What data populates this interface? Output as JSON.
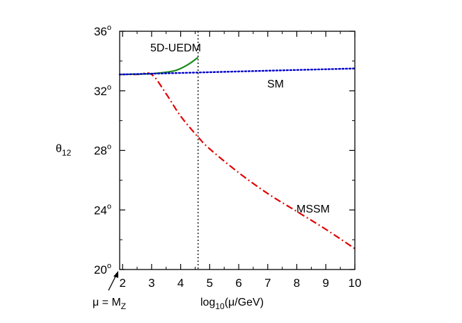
{
  "chart_data": {
    "type": "line",
    "xlabel": {
      "base": "log",
      "sub": "10",
      "rest": "(μ/GeV)"
    },
    "ylabel": {
      "base": "θ",
      "sub": "12"
    },
    "xlim": [
      1.9,
      10
    ],
    "ylim": [
      20,
      36
    ],
    "x_ticks": [
      2,
      3,
      4,
      5,
      6,
      7,
      8,
      9,
      10
    ],
    "y_ticks": [
      20,
      24,
      28,
      32,
      36
    ],
    "y_tick_suffix": "o",
    "annotation": {
      "text": "μ = M",
      "sub": "Z",
      "x": 2
    },
    "vline": {
      "x": 4.6
    },
    "series": [
      {
        "name": "SM",
        "color": "#0000cc",
        "style": "dotted",
        "x": [
          1.9,
          3,
          4,
          5,
          6,
          7,
          8,
          9,
          10
        ],
        "y": [
          33.1,
          33.15,
          33.2,
          33.25,
          33.3,
          33.35,
          33.4,
          33.45,
          33.5
        ]
      },
      {
        "name": "5D-UEDM",
        "color": "#1a8a1a",
        "style": "solid",
        "x": [
          1.9,
          2.5,
          3.0,
          3.5,
          3.8,
          4.0,
          4.2,
          4.4,
          4.6
        ],
        "y": [
          33.1,
          33.12,
          33.15,
          33.25,
          33.35,
          33.5,
          33.7,
          33.95,
          34.25
        ]
      },
      {
        "name": "MSSM",
        "color": "#e00000",
        "style": "dashdot",
        "x": [
          1.9,
          2.5,
          3.0,
          3.5,
          4.0,
          4.6,
          5,
          6,
          7,
          8,
          9,
          10
        ],
        "y": [
          33.1,
          33.1,
          33.1,
          31.8,
          30.3,
          28.9,
          28.1,
          26.5,
          25.1,
          23.9,
          22.7,
          21.4
        ]
      }
    ]
  }
}
